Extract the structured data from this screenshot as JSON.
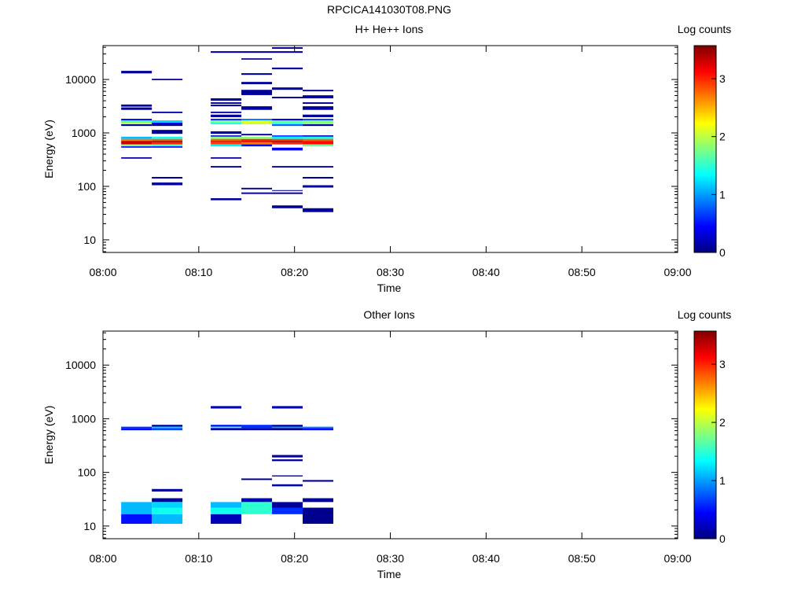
{
  "figure_title": "RPCICA141030T08.PNG",
  "chart_data": [
    {
      "type": "heatmap",
      "title": "H+ He++ Ions",
      "xlabel": "Time",
      "ylabel": "Energy (eV)",
      "xlim_minutes": [
        0,
        60
      ],
      "xticks_minutes": [
        0,
        10,
        20,
        30,
        40,
        50,
        60
      ],
      "xtick_labels": [
        "08:00",
        "08:10",
        "08:20",
        "08:30",
        "08:40",
        "08:50",
        "09:00"
      ],
      "yscale": "log",
      "ylim": [
        5.8,
        43000
      ],
      "yticks": [
        10,
        100,
        1000,
        10000
      ],
      "ytick_labels": [
        "10",
        "100",
        "1000",
        "10000"
      ],
      "colorbar": {
        "label": "Log counts",
        "colormap": "jet",
        "range": [
          0,
          3.57
        ],
        "ticks": [
          0,
          1,
          2,
          3
        ],
        "tick_labels": [
          "0",
          "1",
          "2",
          "3"
        ]
      },
      "time_columns_minutes": [
        [
          1.9,
          5.1
        ],
        [
          5.1,
          8.3
        ],
        [
          11.25,
          14.45
        ],
        [
          14.45,
          17.65
        ],
        [
          17.65,
          20.85
        ],
        [
          20.85,
          24.05
        ]
      ],
      "bins_col_elow_ehigh_logcount": [
        [
          0,
          13000,
          14500,
          0.1
        ],
        [
          0,
          3100,
          3400,
          0.1
        ],
        [
          0,
          2700,
          3000,
          0.1
        ],
        [
          0,
          1720,
          1840,
          0.5
        ],
        [
          0,
          1550,
          1720,
          1.6
        ],
        [
          0,
          1450,
          1550,
          2.0
        ],
        [
          0,
          1350,
          1450,
          0.1
        ],
        [
          0,
          770,
          850,
          1.1
        ],
        [
          0,
          710,
          770,
          2.7
        ],
        [
          0,
          610,
          710,
          3.3
        ],
        [
          0,
          560,
          610,
          1.8
        ],
        [
          0,
          530,
          560,
          0.4
        ],
        [
          0,
          330,
          350,
          0.1
        ],
        [
          1,
          9700,
          10300,
          0.1
        ],
        [
          1,
          2350,
          2500,
          0.1
        ],
        [
          1,
          1550,
          1720,
          1.2
        ],
        [
          1,
          1450,
          1550,
          0.4
        ],
        [
          1,
          1350,
          1450,
          0.1
        ],
        [
          1,
          960,
          1140,
          0.1
        ],
        [
          1,
          770,
          850,
          1.4
        ],
        [
          1,
          710,
          770,
          2.8
        ],
        [
          1,
          670,
          710,
          3.5
        ],
        [
          1,
          610,
          670,
          3.0
        ],
        [
          1,
          560,
          610,
          1.6
        ],
        [
          1,
          530,
          560,
          0.4
        ],
        [
          1,
          140,
          150,
          0.1
        ],
        [
          1,
          105,
          118,
          0.1
        ],
        [
          2,
          31500,
          33800,
          0.1
        ],
        [
          2,
          4000,
          4440,
          0.1
        ],
        [
          2,
          3500,
          3740,
          0.1
        ],
        [
          2,
          3150,
          3380,
          0.1
        ],
        [
          2,
          2350,
          2500,
          0.1
        ],
        [
          2,
          1970,
          2200,
          0.1
        ],
        [
          2,
          1720,
          1840,
          0.6
        ],
        [
          2,
          1550,
          1720,
          1.8
        ],
        [
          2,
          1450,
          1550,
          1.4
        ],
        [
          2,
          960,
          1070,
          0.1
        ],
        [
          2,
          850,
          900,
          0.3
        ],
        [
          2,
          770,
          850,
          1.8
        ],
        [
          2,
          710,
          770,
          2.8
        ],
        [
          2,
          670,
          710,
          3.2
        ],
        [
          2,
          610,
          670,
          2.9
        ],
        [
          2,
          560,
          610,
          1.3
        ],
        [
          2,
          330,
          350,
          0.1
        ],
        [
          2,
          225,
          240,
          0.1
        ],
        [
          2,
          55,
          60,
          0.1
        ],
        [
          3,
          31500,
          33800,
          0.1
        ],
        [
          3,
          23500,
          24900,
          0.1
        ],
        [
          3,
          12200,
          13100,
          0.1
        ],
        [
          3,
          8150,
          9000,
          0.1
        ],
        [
          3,
          5100,
          6400,
          0.1
        ],
        [
          3,
          2700,
          3150,
          0.1
        ],
        [
          3,
          1720,
          1840,
          0.9
        ],
        [
          3,
          1450,
          1720,
          2.1
        ],
        [
          3,
          900,
          960,
          0.1
        ],
        [
          3,
          770,
          850,
          1.8
        ],
        [
          3,
          710,
          770,
          3.0
        ],
        [
          3,
          670,
          710,
          3.3
        ],
        [
          3,
          610,
          670,
          2.7
        ],
        [
          3,
          560,
          610,
          0.5
        ],
        [
          3,
          88,
          94,
          0.1
        ],
        [
          3,
          72,
          77,
          0.3
        ],
        [
          4,
          37500,
          40100,
          0.1
        ],
        [
          4,
          31500,
          33800,
          0.1
        ],
        [
          4,
          15500,
          16700,
          0.1
        ],
        [
          4,
          6400,
          7100,
          0.1
        ],
        [
          4,
          4440,
          4750,
          0.1
        ],
        [
          4,
          1720,
          1840,
          0.4
        ],
        [
          4,
          1550,
          1720,
          1.7
        ],
        [
          4,
          1450,
          1550,
          1.5
        ],
        [
          4,
          1350,
          1450,
          0.8
        ],
        [
          4,
          850,
          900,
          0.6
        ],
        [
          4,
          770,
          850,
          1.3
        ],
        [
          4,
          710,
          770,
          2.9
        ],
        [
          4,
          670,
          710,
          3.5
        ],
        [
          4,
          610,
          670,
          3.0
        ],
        [
          4,
          470,
          530,
          0.4
        ],
        [
          4,
          225,
          240,
          0.1
        ],
        [
          4,
          82,
          85,
          0.1
        ],
        [
          4,
          72,
          77,
          0.1
        ],
        [
          4,
          39,
          44,
          0.1
        ],
        [
          5,
          6000,
          6400,
          0.1
        ],
        [
          5,
          4440,
          5060,
          0.1
        ],
        [
          5,
          3500,
          3740,
          0.1
        ],
        [
          5,
          2700,
          3150,
          0.1
        ],
        [
          5,
          1970,
          2200,
          0.1
        ],
        [
          5,
          1720,
          1840,
          0.7
        ],
        [
          5,
          1450,
          1720,
          1.8
        ],
        [
          5,
          1350,
          1450,
          0.1
        ],
        [
          5,
          850,
          900,
          0.2
        ],
        [
          5,
          770,
          850,
          1.4
        ],
        [
          5,
          710,
          770,
          2.8
        ],
        [
          5,
          610,
          710,
          3.1
        ],
        [
          5,
          560,
          610,
          1.7
        ],
        [
          5,
          225,
          240,
          0.1
        ],
        [
          5,
          140,
          150,
          0.1
        ],
        [
          5,
          95,
          105,
          0.1
        ],
        [
          5,
          33,
          39,
          0.1
        ]
      ]
    },
    {
      "type": "heatmap",
      "title": "Other Ions",
      "xlabel": "Time",
      "ylabel": "Energy (eV)",
      "xlim_minutes": [
        0,
        60
      ],
      "xticks_minutes": [
        0,
        10,
        20,
        30,
        40,
        50,
        60
      ],
      "xtick_labels": [
        "08:00",
        "08:10",
        "08:20",
        "08:30",
        "08:40",
        "08:50",
        "09:00"
      ],
      "yscale": "log",
      "ylim": [
        5.8,
        43000
      ],
      "yticks": [
        10,
        100,
        1000,
        10000
      ],
      "ytick_labels": [
        "10",
        "100",
        "1000",
        "10000"
      ],
      "colorbar": {
        "label": "Log counts",
        "colormap": "jet",
        "range": [
          0,
          3.57
        ],
        "ticks": [
          0,
          1,
          2,
          3
        ],
        "tick_labels": [
          "0",
          "1",
          "2",
          "3"
        ]
      },
      "time_columns_minutes": [
        [
          1.9,
          5.1
        ],
        [
          5.1,
          8.3
        ],
        [
          11.25,
          14.45
        ],
        [
          14.45,
          17.65
        ],
        [
          17.65,
          20.85
        ],
        [
          20.85,
          24.05
        ]
      ],
      "bins_col_elow_ehigh_logcount": [
        [
          0,
          670,
          710,
          0.6
        ],
        [
          0,
          610,
          670,
          0.5
        ],
        [
          0,
          22,
          28,
          1.1
        ],
        [
          0,
          16.6,
          22,
          1.1
        ],
        [
          0,
          11,
          16.6,
          0.5
        ],
        [
          1,
          710,
          770,
          0.1
        ],
        [
          1,
          670,
          710,
          1.2
        ],
        [
          1,
          610,
          670,
          0.7
        ],
        [
          1,
          44,
          49,
          0.1
        ],
        [
          1,
          28,
          33,
          0.1
        ],
        [
          1,
          22,
          28,
          1.2
        ],
        [
          1,
          16.6,
          22,
          1.4
        ],
        [
          1,
          11,
          16.6,
          1.1
        ],
        [
          2,
          1550,
          1720,
          0.2
        ],
        [
          2,
          710,
          770,
          0.5
        ],
        [
          2,
          670,
          710,
          1.6
        ],
        [
          2,
          610,
          670,
          0.2
        ],
        [
          2,
          22,
          28,
          1.1
        ],
        [
          2,
          16.6,
          22,
          1.4
        ],
        [
          2,
          11,
          16.6,
          0.2
        ],
        [
          3,
          670,
          770,
          0.6
        ],
        [
          3,
          610,
          670,
          0.2
        ],
        [
          3,
          72,
          77,
          0.1
        ],
        [
          3,
          28,
          33,
          0.2
        ],
        [
          3,
          16.6,
          28,
          1.5
        ],
        [
          4,
          1550,
          1720,
          0.2
        ],
        [
          4,
          710,
          770,
          0.1
        ],
        [
          4,
          670,
          710,
          1.0
        ],
        [
          4,
          610,
          670,
          0.05
        ],
        [
          4,
          190,
          211,
          0.1
        ],
        [
          4,
          162,
          175,
          0.1
        ],
        [
          4,
          84,
          88,
          0.1
        ],
        [
          4,
          55,
          60,
          0.1
        ],
        [
          4,
          22,
          28,
          0.1
        ],
        [
          4,
          16.6,
          22,
          0.6
        ],
        [
          5,
          670,
          710,
          0.9
        ],
        [
          5,
          610,
          670,
          0.5
        ],
        [
          5,
          67,
          72,
          0.1
        ],
        [
          5,
          28,
          33,
          0.1
        ],
        [
          5,
          11,
          22,
          0.05
        ]
      ]
    }
  ]
}
